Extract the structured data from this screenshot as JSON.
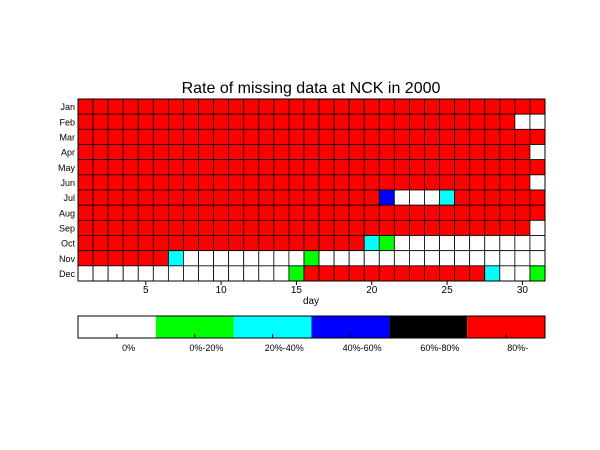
{
  "chart_data": {
    "type": "heatmap",
    "title": "Rate of missing data at NCK in 2000",
    "xlabel": "day",
    "ylabel": "",
    "x": [
      1,
      2,
      3,
      4,
      5,
      6,
      7,
      8,
      9,
      10,
      11,
      12,
      13,
      14,
      15,
      16,
      17,
      18,
      19,
      20,
      21,
      22,
      23,
      24,
      25,
      26,
      27,
      28,
      29,
      30,
      31
    ],
    "x_ticks": [
      5,
      10,
      15,
      20,
      25,
      30
    ],
    "months": [
      "Jan",
      "Feb",
      "Mar",
      "Apr",
      "May",
      "Jun",
      "Jul",
      "Aug",
      "Sep",
      "Oct",
      "Nov",
      "Dec"
    ],
    "legend": {
      "placement": "bottom",
      "labels": [
        "0%",
        "0%-20%",
        "20%-40%",
        "40%-60%",
        "60%-80%",
        "80%-"
      ],
      "colors": [
        "#ffffff",
        "#00ff00",
        "#00ffff",
        "#0000ff",
        "#000000",
        "#ff0000"
      ]
    },
    "values": [
      [
        5,
        5,
        5,
        5,
        5,
        5,
        5,
        5,
        5,
        5,
        5,
        5,
        5,
        5,
        5,
        5,
        5,
        5,
        5,
        5,
        5,
        5,
        5,
        5,
        5,
        5,
        5,
        5,
        5,
        5,
        5
      ],
      [
        5,
        5,
        5,
        5,
        5,
        5,
        5,
        5,
        5,
        5,
        5,
        5,
        5,
        5,
        5,
        5,
        5,
        5,
        5,
        5,
        5,
        5,
        5,
        5,
        5,
        5,
        5,
        5,
        5,
        0,
        0
      ],
      [
        5,
        5,
        5,
        5,
        5,
        5,
        5,
        5,
        5,
        5,
        5,
        5,
        5,
        5,
        5,
        5,
        5,
        5,
        5,
        5,
        5,
        5,
        5,
        5,
        5,
        5,
        5,
        5,
        5,
        5,
        5
      ],
      [
        5,
        5,
        5,
        5,
        5,
        5,
        5,
        5,
        5,
        5,
        5,
        5,
        5,
        5,
        5,
        5,
        5,
        5,
        5,
        5,
        5,
        5,
        5,
        5,
        5,
        5,
        5,
        5,
        5,
        5,
        0
      ],
      [
        5,
        5,
        5,
        5,
        5,
        5,
        5,
        5,
        5,
        5,
        5,
        5,
        5,
        5,
        5,
        5,
        5,
        5,
        5,
        5,
        5,
        5,
        5,
        5,
        5,
        5,
        5,
        5,
        5,
        5,
        5
      ],
      [
        5,
        5,
        5,
        5,
        5,
        5,
        5,
        5,
        5,
        5,
        5,
        5,
        5,
        5,
        5,
        5,
        5,
        5,
        5,
        5,
        5,
        5,
        5,
        5,
        5,
        5,
        5,
        5,
        5,
        5,
        0
      ],
      [
        5,
        5,
        5,
        5,
        5,
        5,
        5,
        5,
        5,
        5,
        5,
        5,
        5,
        5,
        5,
        5,
        5,
        5,
        5,
        5,
        3,
        0,
        0,
        0,
        2,
        5,
        5,
        5,
        5,
        5,
        5
      ],
      [
        5,
        5,
        5,
        5,
        5,
        5,
        5,
        5,
        5,
        5,
        5,
        5,
        5,
        5,
        5,
        5,
        5,
        5,
        5,
        5,
        5,
        5,
        5,
        5,
        5,
        5,
        5,
        5,
        5,
        5,
        5
      ],
      [
        5,
        5,
        5,
        5,
        5,
        5,
        5,
        5,
        5,
        5,
        5,
        5,
        5,
        5,
        5,
        5,
        5,
        5,
        5,
        5,
        5,
        5,
        5,
        5,
        5,
        5,
        5,
        5,
        5,
        5,
        0
      ],
      [
        5,
        5,
        5,
        5,
        5,
        5,
        5,
        5,
        5,
        5,
        5,
        5,
        5,
        5,
        5,
        5,
        5,
        5,
        5,
        2,
        1,
        0,
        0,
        0,
        0,
        0,
        0,
        0,
        0,
        0,
        0
      ],
      [
        5,
        5,
        5,
        5,
        5,
        5,
        2,
        0,
        0,
        0,
        0,
        0,
        0,
        0,
        0,
        1,
        0,
        0,
        0,
        0,
        0,
        0,
        0,
        0,
        0,
        0,
        0,
        0,
        0,
        0,
        0
      ],
      [
        0,
        0,
        0,
        0,
        0,
        0,
        0,
        0,
        0,
        0,
        0,
        0,
        0,
        0,
        1,
        5,
        5,
        5,
        5,
        5,
        5,
        5,
        5,
        5,
        5,
        5,
        5,
        2,
        0,
        0,
        1
      ]
    ]
  }
}
